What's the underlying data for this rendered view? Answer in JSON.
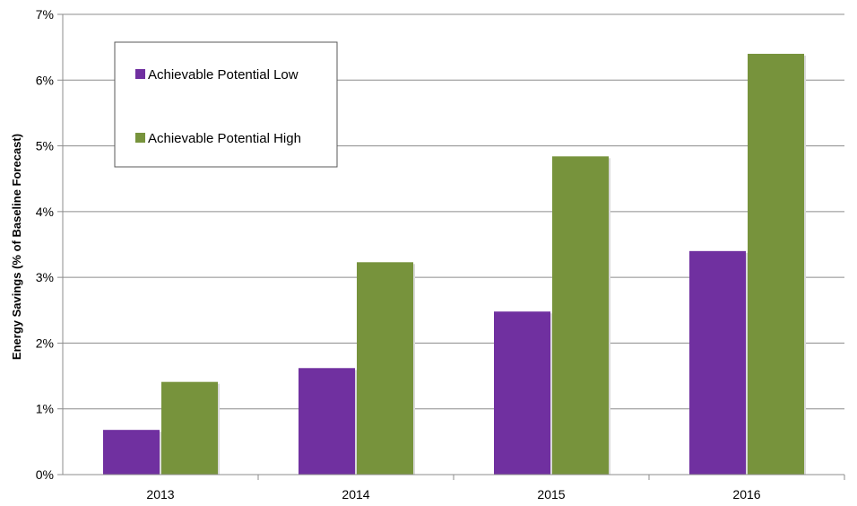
{
  "chart_data": {
    "type": "bar",
    "title": "",
    "xlabel": "",
    "ylabel": "Energy Savings (% of Baseline Forecast)",
    "categories": [
      "2013",
      "2014",
      "2015",
      "2016"
    ],
    "series": [
      {
        "name": "Achievable Potential Low",
        "values": [
          0.68,
          1.62,
          2.48,
          3.4
        ],
        "color": "#7030a0"
      },
      {
        "name": "Achievable Potential High",
        "values": [
          1.41,
          3.23,
          4.84,
          6.4
        ],
        "color": "#77933c"
      }
    ],
    "ylim": [
      0,
      7
    ],
    "yticks": [
      "0%",
      "1%",
      "2%",
      "3%",
      "4%",
      "5%",
      "6%",
      "7%"
    ],
    "grid": true,
    "legend_position": "top-left"
  }
}
